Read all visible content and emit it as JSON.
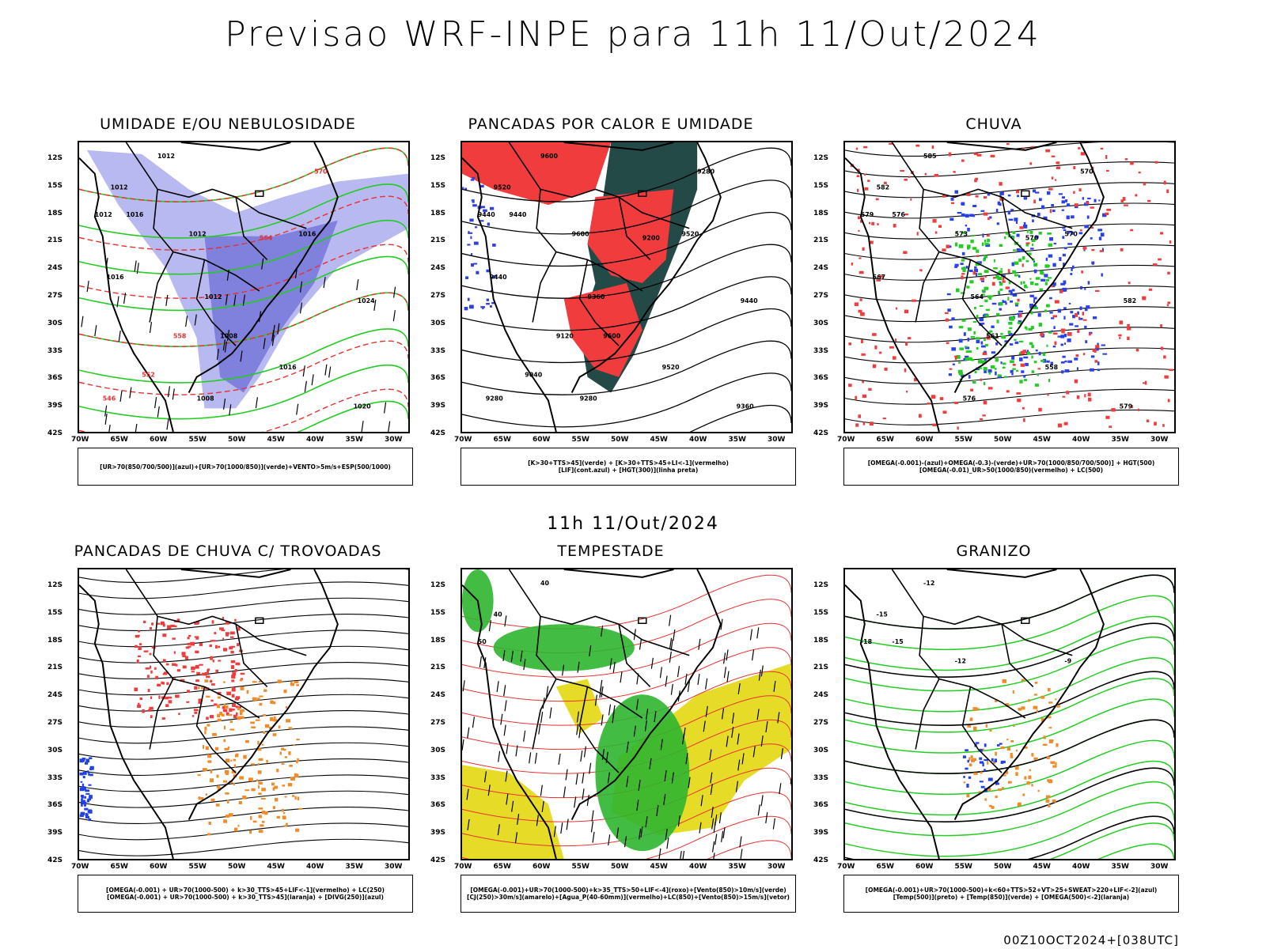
{
  "page": {
    "title": "Previsao WRF-INPE  para 11h 11/Out/2024",
    "mid_title": "11h 11/Out/2024",
    "footer": "00Z10OCT2024+[038UTC]"
  },
  "axes": {
    "lat_labels": [
      "12S",
      "15S",
      "18S",
      "21S",
      "24S",
      "27S",
      "30S",
      "33S",
      "36S",
      "39S",
      "42S"
    ],
    "lon_labels": [
      "70W",
      "65W",
      "60W",
      "55W",
      "50W",
      "45W",
      "40W",
      "35W",
      "30W"
    ]
  },
  "colors": {
    "blue_fill": "#8080e6",
    "red_fill": "#f03c3c",
    "green_contour": "#22cc22",
    "orange_fill": "#f08c28",
    "yellow_fill": "#e6dc28",
    "dark_teal": "#244a48",
    "red_contour": "#e83030"
  },
  "panels": [
    {
      "title": "UMIDADE E/OU NEBULOSIDADE",
      "legend": [
        "[UR>70(850/700/500)](azul)+[UR>70(1000/850)](verde)+VENTO>5m/s+ESP(500/1000)"
      ],
      "labels": [
        "1012",
        "1012",
        "1012",
        "1016",
        "1012",
        "1016",
        "1016",
        "1012",
        "1008",
        "1016",
        "1024",
        "1020",
        "1008",
        "570",
        "564",
        "558",
        "552",
        "546"
      ]
    },
    {
      "title": "PANCADAS POR CALOR E UMIDADE",
      "legend": [
        "[K>30+TTS>45](verde) + [K>30+TTS>45+LI<-1](vermelho)",
        "[LIF](cont.azul) + [HGT(300)](linha preta)"
      ],
      "labels": [
        "9600",
        "9520",
        "9440",
        "9440",
        "9600",
        "9520",
        "9440",
        "9360",
        "9600",
        "9520",
        "9440",
        "9360",
        "9280",
        "9280",
        "9200",
        "9120",
        "9040",
        "9280"
      ]
    },
    {
      "title": "CHUVA",
      "legend": [
        "[OMEGA(-0.001)-(azul)+OMEGA(-0.3)-(verde)+UR>70(1000/850/700/500)] + HGT(500)",
        "[OMEGA(-0.01)_UR>50(1000/850)(vermelho) + LC(500)"
      ],
      "labels": [
        "585",
        "582",
        "579",
        "576",
        "573",
        "570",
        "567",
        "564",
        "561",
        "558",
        "582",
        "579",
        "576",
        "570",
        "570"
      ]
    },
    {
      "title": "PANCADAS DE CHUVA C/ TROVOADAS",
      "legend": [
        "[OMEGA(-0.001) + UR>70(1000-500) + k>30_TTS>45+LIF<-1](vermelho) + LC(250)",
        "[OMEGA(-0.001) + UR>70(1000-500) + k>30_TTS>45](laranja) + [DIVG(250)](azul)"
      ],
      "labels": []
    },
    {
      "title": "TEMPESTADE",
      "legend": [
        "[OMEGA(-0.001)+UR>70(1000-500)+k>35_TTS>50+LIF<-4](roxo)+[Vento(850)>10m/s](verde)",
        "[CJ(250)>30m/s](amarelo)+[Agua_P(40-60mm)](vermelho)+LC(850)+[Vento(850)>15m/s](vetor)"
      ],
      "labels": [
        "40",
        "40",
        "50"
      ]
    },
    {
      "title": "GRANIZO",
      "legend": [
        "[OMEGA(-0.001)+UR>70(1000-500)+k<60+TTS>52+VT>25+SWEAT>220+LIF<-2](azul)",
        "[Temp(500)](preto) + [Temp(850)](verde) + [OMEGA(500)<-2](laranja)"
      ],
      "labels": [
        "-12",
        "-15",
        "-18",
        "-15",
        "-12",
        "-9"
      ]
    }
  ]
}
